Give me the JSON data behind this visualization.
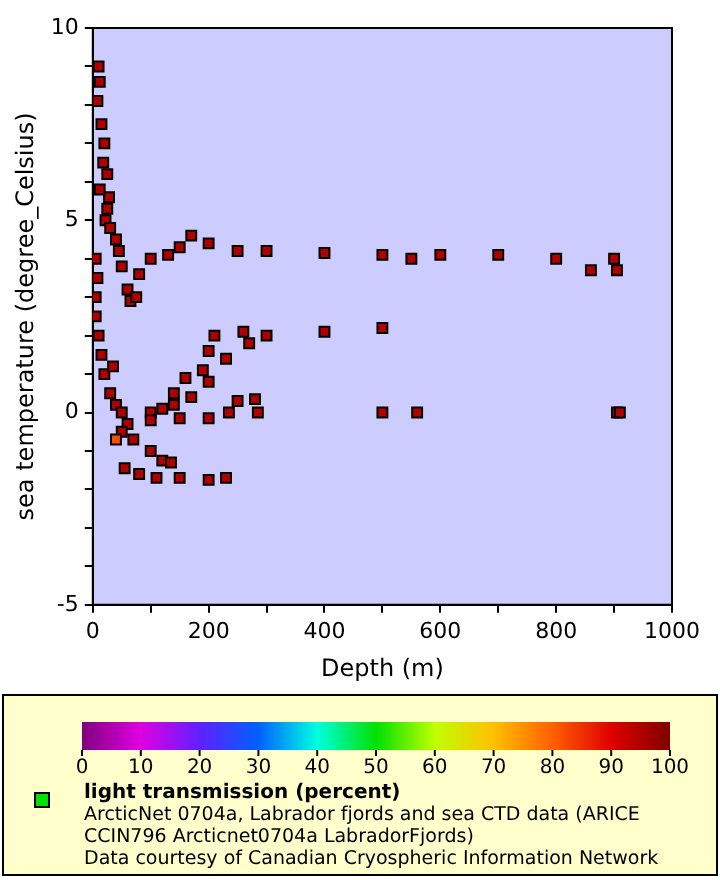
{
  "chart_data": {
    "type": "scatter",
    "xlabel": "Depth (m)",
    "ylabel": "sea temperature (degree_Celsius)",
    "clabel": "light transmission (percent)",
    "annotations": [
      "ArcticNet 0704a, Labrador fjords and sea CTD data (ARICE CCIN796 Arcticnet0704a LabradorFjords)",
      "Data courtesy of Canadian Cryospheric Information Network"
    ],
    "xlim": [
      0,
      1000
    ],
    "ylim": [
      -5,
      10
    ],
    "xticks": [
      0,
      {
        "value": 100,
        "label": null
      },
      200,
      {
        "value": 300,
        "label": null
      },
      400,
      {
        "value": 500,
        "label": null
      },
      600,
      {
        "value": 700,
        "label": null
      },
      800,
      {
        "value": 900,
        "label": null
      },
      1000
    ],
    "yticks": [
      -5,
      {
        "value": -4,
        "label": null
      },
      {
        "value": -3,
        "label": null
      },
      {
        "value": -2,
        "label": null
      },
      {
        "value": -1,
        "label": null
      },
      0,
      {
        "value": 1,
        "label": null
      },
      {
        "value": 2,
        "label": null
      },
      {
        "value": 3,
        "label": null
      },
      {
        "value": 4,
        "label": null
      },
      5,
      {
        "value": 6,
        "label": null
      },
      {
        "value": 7,
        "label": null
      },
      {
        "value": 8,
        "label": null
      },
      {
        "value": 9,
        "label": null
      },
      10
    ],
    "clim": [
      0,
      100
    ],
    "cticks": [
      0,
      10,
      20,
      30,
      40,
      50,
      60,
      70,
      80,
      90,
      100
    ],
    "grid": false,
    "legend": false,
    "marker": "square",
    "x": [
      10,
      12,
      8,
      15,
      20,
      25,
      28,
      22,
      30,
      40,
      45,
      50,
      60,
      65,
      75,
      80,
      100,
      130,
      150,
      170,
      200,
      250,
      300,
      400,
      500,
      550,
      600,
      700,
      800,
      860,
      900,
      905,
      5,
      5,
      5,
      10,
      15,
      20,
      30,
      40,
      50,
      60,
      100,
      120,
      140,
      160,
      190,
      200,
      210,
      260,
      300,
      400,
      500,
      140,
      170,
      200,
      230,
      270,
      100,
      150,
      200,
      250,
      280,
      235,
      285,
      500,
      560,
      905,
      910,
      50,
      70,
      100,
      120,
      135,
      55,
      80,
      110,
      150,
      200,
      230,
      40,
      18,
      12,
      8,
      25,
      35
    ],
    "values": [
      9,
      8.6,
      8.1,
      7.5,
      7,
      6.2,
      5.6,
      5,
      4.8,
      4.5,
      4.2,
      3.8,
      3.2,
      2.9,
      3,
      3.6,
      4,
      4.1,
      4.3,
      4.6,
      4.4,
      4.2,
      4.2,
      4.15,
      4.1,
      4,
      4.1,
      4.1,
      4,
      3.7,
      4,
      3.7,
      4,
      3,
      2.5,
      2,
      1.5,
      1,
      0.5,
      0.2,
      0,
      -0.3,
      0,
      0.1,
      0.5,
      0.9,
      1.1,
      1.6,
      2,
      2.1,
      2,
      2.1,
      2.2,
      0.2,
      0.4,
      0.8,
      1.4,
      1.8,
      -0.2,
      -0.15,
      -0.15,
      0.3,
      0.35,
      0,
      0,
      0,
      0,
      0,
      0,
      -0.5,
      -0.7,
      -1,
      -1.25,
      -1.3,
      -1.45,
      -1.6,
      -1.7,
      -1.7,
      -1.75,
      -1.7,
      -0.7,
      6.5,
      5.8,
      3.5,
      5.3,
      1.2
    ],
    "cvalues": [
      95,
      95,
      95,
      95,
      95,
      95,
      95,
      95,
      95,
      95,
      95,
      95,
      95,
      95,
      95,
      95,
      95,
      95,
      95,
      95,
      95,
      95,
      95,
      95,
      95,
      95,
      95,
      95,
      95,
      95,
      95,
      95,
      95,
      95,
      95,
      95,
      95,
      95,
      95,
      95,
      95,
      95,
      95,
      95,
      95,
      95,
      95,
      95,
      95,
      95,
      95,
      95,
      95,
      95,
      95,
      95,
      95,
      95,
      95,
      95,
      95,
      95,
      95,
      95,
      95,
      95,
      95,
      95,
      95,
      95,
      95,
      95,
      95,
      95,
      95,
      95,
      95,
      95,
      95,
      95,
      82,
      95,
      95,
      95,
      95,
      95
    ]
  }
}
